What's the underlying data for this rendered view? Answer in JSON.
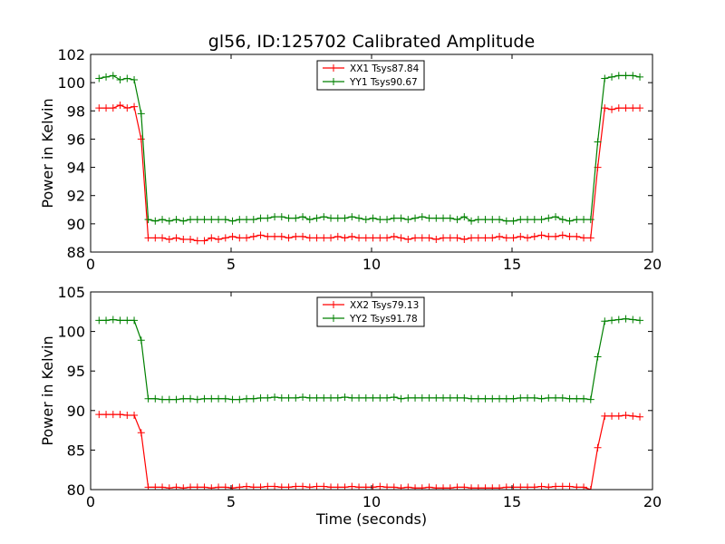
{
  "chart_data": [
    {
      "type": "line",
      "title": "gl56, ID:125702 Calibrated Amplitude",
      "xlabel": "",
      "ylabel": "Power in Kelvin",
      "xlim": [
        0,
        20
      ],
      "ylim": [
        88,
        102
      ],
      "xticks": [
        0,
        5,
        10,
        15,
        20
      ],
      "yticks": [
        88,
        90,
        92,
        94,
        96,
        98,
        100,
        102
      ],
      "legend_position": "upper center",
      "x": [
        0.3,
        0.55,
        0.8,
        1.05,
        1.3,
        1.55,
        1.8,
        2.05,
        2.3,
        2.55,
        2.8,
        3.05,
        3.3,
        3.55,
        3.8,
        4.05,
        4.3,
        4.55,
        4.8,
        5.05,
        5.3,
        5.55,
        5.8,
        6.05,
        6.3,
        6.55,
        6.8,
        7.05,
        7.3,
        7.55,
        7.8,
        8.05,
        8.3,
        8.55,
        8.8,
        9.05,
        9.3,
        9.55,
        9.8,
        10.05,
        10.3,
        10.55,
        10.8,
        11.05,
        11.3,
        11.55,
        11.8,
        12.05,
        12.3,
        12.55,
        12.8,
        13.05,
        13.3,
        13.55,
        13.8,
        14.05,
        14.3,
        14.55,
        14.8,
        15.05,
        15.3,
        15.55,
        15.8,
        16.05,
        16.3,
        16.55,
        16.8,
        17.05,
        17.3,
        17.55,
        17.8,
        18.05,
        18.3,
        18.55,
        18.8,
        19.05,
        19.3,
        19.55
      ],
      "series": [
        {
          "name": "XX1 Tsys87.84",
          "color": "#ff0000",
          "values": [
            98.2,
            98.2,
            98.2,
            98.4,
            98.2,
            98.3,
            96.0,
            89.0,
            89.0,
            89.0,
            88.9,
            89.0,
            88.9,
            88.9,
            88.8,
            88.8,
            89.0,
            88.9,
            89.0,
            89.1,
            89.0,
            89.0,
            89.1,
            89.2,
            89.1,
            89.1,
            89.1,
            89.0,
            89.1,
            89.1,
            89.0,
            89.0,
            89.0,
            89.0,
            89.1,
            89.0,
            89.1,
            89.0,
            89.0,
            89.0,
            89.0,
            89.0,
            89.1,
            89.0,
            88.9,
            89.0,
            89.0,
            89.0,
            88.9,
            89.0,
            89.0,
            89.0,
            88.9,
            89.0,
            89.0,
            89.0,
            89.0,
            89.1,
            89.0,
            89.0,
            89.1,
            89.0,
            89.1,
            89.2,
            89.1,
            89.1,
            89.2,
            89.1,
            89.1,
            89.0,
            89.0,
            94.0,
            98.2,
            98.1,
            98.2,
            98.2,
            98.2,
            98.2
          ]
        },
        {
          "name": "YY1 Tsys90.67",
          "color": "#008000",
          "values": [
            100.3,
            100.4,
            100.5,
            100.2,
            100.3,
            100.2,
            97.8,
            90.3,
            90.2,
            90.3,
            90.2,
            90.3,
            90.2,
            90.3,
            90.3,
            90.3,
            90.3,
            90.3,
            90.3,
            90.2,
            90.3,
            90.3,
            90.3,
            90.4,
            90.4,
            90.5,
            90.5,
            90.4,
            90.4,
            90.5,
            90.3,
            90.4,
            90.5,
            90.4,
            90.4,
            90.4,
            90.5,
            90.4,
            90.3,
            90.4,
            90.3,
            90.3,
            90.4,
            90.4,
            90.3,
            90.4,
            90.5,
            90.4,
            90.4,
            90.4,
            90.4,
            90.3,
            90.5,
            90.2,
            90.3,
            90.3,
            90.3,
            90.3,
            90.2,
            90.2,
            90.3,
            90.3,
            90.3,
            90.3,
            90.4,
            90.5,
            90.3,
            90.2,
            90.3,
            90.3,
            90.3,
            95.8,
            100.3,
            100.4,
            100.5,
            100.5,
            100.5,
            100.4
          ]
        }
      ]
    },
    {
      "type": "line",
      "title": "",
      "xlabel": "Time (seconds)",
      "ylabel": "Power in Kelvin",
      "xlim": [
        0,
        20
      ],
      "ylim": [
        80,
        105
      ],
      "xticks": [
        0,
        5,
        10,
        15,
        20
      ],
      "yticks": [
        80,
        85,
        90,
        95,
        100,
        105
      ],
      "legend_position": "upper center",
      "x": [
        0.3,
        0.55,
        0.8,
        1.05,
        1.3,
        1.55,
        1.8,
        2.05,
        2.3,
        2.55,
        2.8,
        3.05,
        3.3,
        3.55,
        3.8,
        4.05,
        4.3,
        4.55,
        4.8,
        5.05,
        5.3,
        5.55,
        5.8,
        6.05,
        6.3,
        6.55,
        6.8,
        7.05,
        7.3,
        7.55,
        7.8,
        8.05,
        8.3,
        8.55,
        8.8,
        9.05,
        9.3,
        9.55,
        9.8,
        10.05,
        10.3,
        10.55,
        10.8,
        11.05,
        11.3,
        11.55,
        11.8,
        12.05,
        12.3,
        12.55,
        12.8,
        13.05,
        13.3,
        13.55,
        13.8,
        14.05,
        14.3,
        14.55,
        14.8,
        15.05,
        15.3,
        15.55,
        15.8,
        16.05,
        16.3,
        16.55,
        16.8,
        17.05,
        17.3,
        17.55,
        17.8,
        18.05,
        18.3,
        18.55,
        18.8,
        19.05,
        19.3,
        19.55
      ],
      "series": [
        {
          "name": "XX2 Tsys79.13",
          "color": "#ff0000",
          "values": [
            89.5,
            89.5,
            89.5,
            89.5,
            89.4,
            89.4,
            87.2,
            80.3,
            80.3,
            80.3,
            80.2,
            80.3,
            80.2,
            80.3,
            80.3,
            80.3,
            80.2,
            80.3,
            80.3,
            80.2,
            80.3,
            80.4,
            80.3,
            80.3,
            80.4,
            80.4,
            80.3,
            80.3,
            80.4,
            80.4,
            80.3,
            80.4,
            80.4,
            80.3,
            80.3,
            80.3,
            80.4,
            80.3,
            80.3,
            80.3,
            80.4,
            80.3,
            80.3,
            80.2,
            80.3,
            80.2,
            80.2,
            80.3,
            80.2,
            80.2,
            80.2,
            80.3,
            80.3,
            80.2,
            80.2,
            80.2,
            80.2,
            80.2,
            80.3,
            80.3,
            80.3,
            80.3,
            80.3,
            80.4,
            80.3,
            80.4,
            80.4,
            80.4,
            80.3,
            80.3,
            80.0,
            85.3,
            89.3,
            89.3,
            89.3,
            89.4,
            89.3,
            89.2
          ]
        },
        {
          "name": "YY2 Tsys91.78",
          "color": "#008000",
          "values": [
            101.4,
            101.4,
            101.5,
            101.4,
            101.4,
            101.4,
            98.9,
            91.5,
            91.5,
            91.4,
            91.4,
            91.4,
            91.5,
            91.5,
            91.4,
            91.5,
            91.5,
            91.5,
            91.5,
            91.4,
            91.4,
            91.5,
            91.5,
            91.6,
            91.6,
            91.7,
            91.6,
            91.6,
            91.6,
            91.7,
            91.6,
            91.6,
            91.6,
            91.6,
            91.6,
            91.7,
            91.6,
            91.6,
            91.6,
            91.6,
            91.6,
            91.6,
            91.7,
            91.5,
            91.6,
            91.6,
            91.6,
            91.6,
            91.6,
            91.6,
            91.6,
            91.6,
            91.6,
            91.5,
            91.5,
            91.5,
            91.5,
            91.5,
            91.5,
            91.5,
            91.6,
            91.6,
            91.6,
            91.5,
            91.6,
            91.6,
            91.6,
            91.5,
            91.5,
            91.5,
            91.4,
            96.8,
            101.3,
            101.4,
            101.5,
            101.6,
            101.5,
            101.4
          ]
        }
      ]
    }
  ]
}
